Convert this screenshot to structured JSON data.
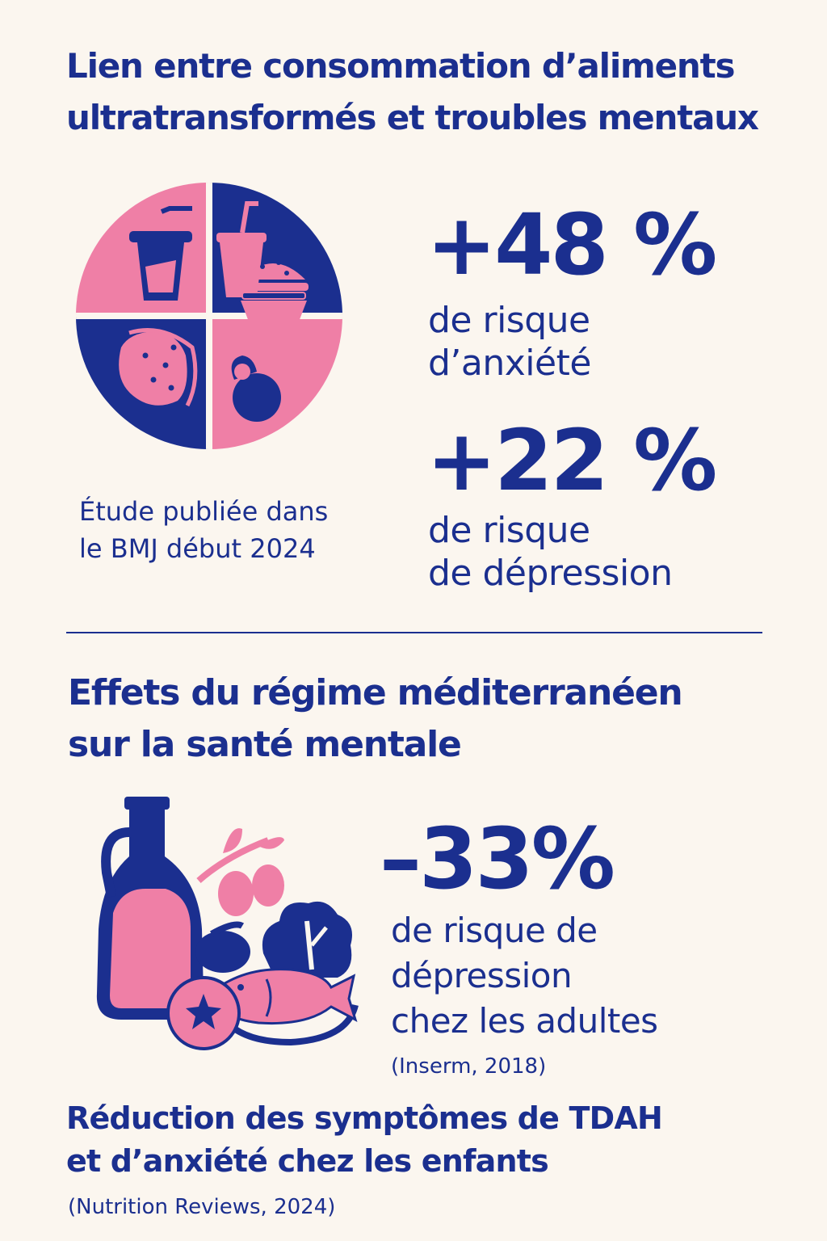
{
  "section1": {
    "title_line1": "Lien entre consommation d’aliments",
    "title_line2": "ultratransformés et troubles mentaux",
    "stat1": {
      "value": "+48 %",
      "label_line1": "de risque",
      "label_line2": "d’anxiété"
    },
    "stat2": {
      "value": "+22 %",
      "label_line1": "de risque",
      "label_line2": "de dépression"
    },
    "source_line1": "Étude publiée dans",
    "source_line2": "le BMJ début 2024"
  },
  "section2": {
    "title_line1": "Effets du régime méditerranéen",
    "title_line2": "sur la santé mentale",
    "stat": {
      "value": "–33%",
      "label_line1": "de risque de",
      "label_line2": "dépression",
      "label_line3": "chez les adultes"
    },
    "stat_source": "(Inserm, 2018)",
    "children_line1": "Réduction des symptômes de TDAH",
    "children_line2": "et d’anxiété chez les enfants",
    "children_source": "(Nutrition Reviews, 2024)"
  },
  "colors": {
    "navy": "#1b2f8f",
    "pink": "#ef7fa6",
    "background": "#fbf6ef"
  },
  "icons": [
    "processed-food-pie-icon",
    "mediterranean-food-icon"
  ]
}
